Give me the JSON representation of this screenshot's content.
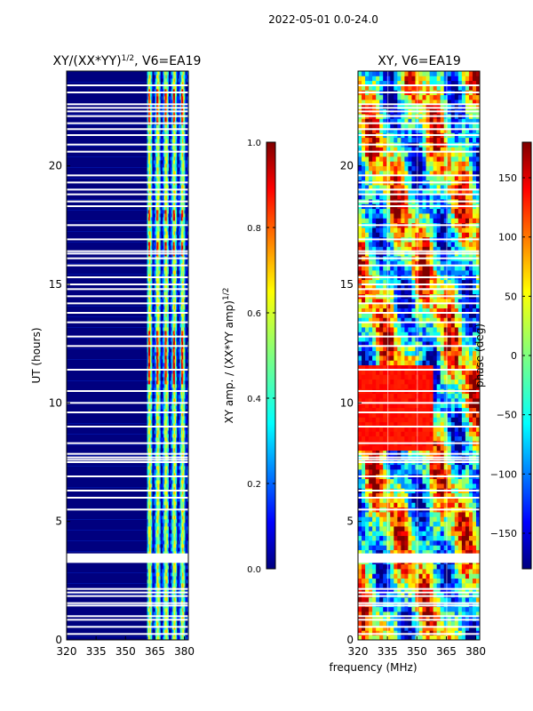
{
  "figure": {
    "suptitle": "2022-05-01 0.0-24.0",
    "xlabel": "frequency (MHz)"
  },
  "colors": {
    "jet": [
      "#00007f",
      "#0000ff",
      "#007fff",
      "#00ffff",
      "#7fff7f",
      "#ffff00",
      "#ff7f00",
      "#ff0000",
      "#7f0000"
    ],
    "gap": "#ffffff",
    "background": "#00007f"
  },
  "chart_data": [
    {
      "type": "heatmap",
      "title_base": "XY/(XX*YY)",
      "title_exp": "1/2",
      "title_suffix": ", V6=EA19",
      "ylabel": "UT (hours)",
      "xlim": [
        320,
        382
      ],
      "ylim": [
        0,
        24
      ],
      "xticks": [
        "320",
        "335",
        "350",
        "365",
        "380"
      ],
      "yticks": [
        "0",
        "5",
        "10",
        "15",
        "20"
      ],
      "colorbar": {
        "label": "XY amp. / (XX*YY amp)",
        "label_exp": "1/2",
        "range": [
          0.0,
          1.0
        ],
        "ticks": [
          "0.0",
          "0.2",
          "0.4",
          "0.6",
          "0.8",
          "1.0"
        ]
      },
      "active_band_mhz": [
        361,
        382
      ],
      "peak_hours": [
        [
          10.8,
          13.0
        ],
        [
          16.2,
          16.8
        ],
        [
          17.7,
          18.1
        ],
        [
          21.7,
          23.3
        ]
      ]
    },
    {
      "type": "heatmap",
      "title": "XY, V6=EA19",
      "xlim": [
        320,
        382
      ],
      "ylim": [
        0,
        24
      ],
      "xticks": [
        "320",
        "335",
        "350",
        "365",
        "380"
      ],
      "yticks": [
        "0",
        "5",
        "10",
        "15",
        "20"
      ],
      "colorbar": {
        "label": "phase (deg)",
        "range": [
          -180,
          180
        ],
        "ticks": [
          "−150",
          "−100",
          "−50",
          "0",
          "50",
          "100",
          "150"
        ]
      },
      "uniform_band": {
        "hours": [
          8.0,
          11.5
        ],
        "mhz": [
          320,
          358
        ],
        "phase_deg": 130
      }
    }
  ],
  "gaps_hours": [
    0.25,
    0.55,
    0.85,
    1.0,
    1.45,
    1.55,
    1.85,
    2.0,
    2.15,
    3.3,
    3.4,
    3.5,
    3.6,
    5.5,
    6.0,
    6.3,
    6.9,
    7.5,
    7.6,
    7.7,
    7.85,
    8.3,
    9.0,
    9.6,
    10.0,
    10.5,
    11.4,
    12.4,
    12.8,
    13.4,
    13.8,
    14.2,
    14.5,
    14.8,
    15.0,
    15.3,
    15.8,
    16.1,
    16.3,
    16.4,
    16.9,
    17.5,
    18.3,
    18.5,
    18.8,
    19.0,
    19.3,
    19.6,
    20.6,
    20.9,
    21.3,
    21.55,
    21.8,
    22.1,
    22.3,
    22.45,
    22.6,
    23.1,
    23.4
  ]
}
